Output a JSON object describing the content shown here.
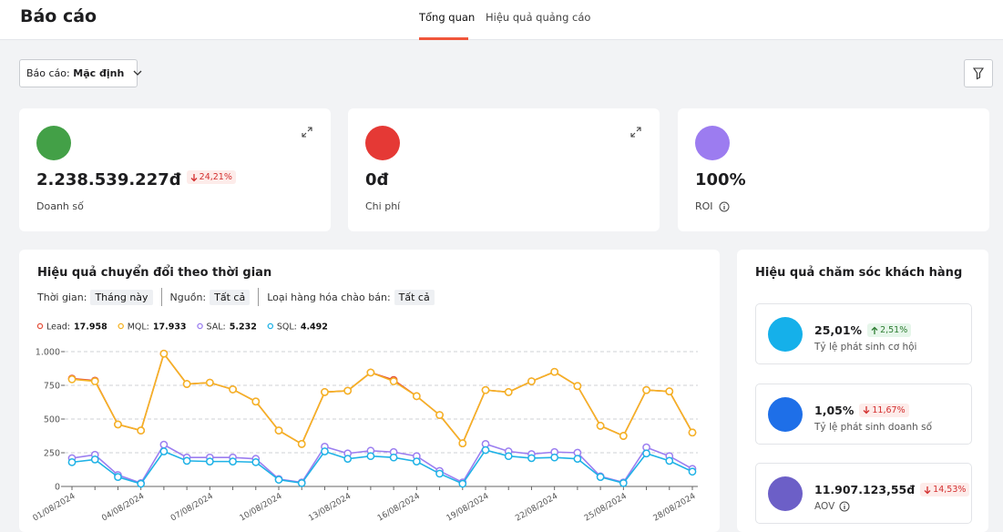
{
  "header": {
    "title": "Báo cáo",
    "tabs": [
      "Tổng quan",
      "Hiệu quả quảng cáo"
    ],
    "active_tab": 0
  },
  "toolbar": {
    "report_label": "Báo cáo:",
    "report_value": "Mặc định"
  },
  "kpis": [
    {
      "value": "2.238.539.227đ",
      "change": "24,21%",
      "trend": "down",
      "label": "Doanh số",
      "color": "#43a047",
      "expand": true
    },
    {
      "value": "0đ",
      "label": "Chi phí",
      "color": "#e53935",
      "expand": true
    },
    {
      "value": "100%",
      "label": "ROI",
      "color": "#9c7cf0",
      "info": true
    }
  ],
  "conversion": {
    "title": "Hiệu quả chuyển đổi theo thời gian",
    "filters": [
      {
        "label": "Thời gian:",
        "value": "Tháng này"
      },
      {
        "label": "Nguồn:",
        "value": "Tất cả"
      },
      {
        "label": "Loại hàng hóa chào bán:",
        "value": "Tất cả"
      }
    ],
    "chart_data": {
      "type": "line",
      "categories": [
        "01/08/2024",
        null,
        null,
        "04/08/2024",
        null,
        null,
        "07/08/2024",
        null,
        null,
        "10/08/2024",
        null,
        null,
        "13/08/2024",
        null,
        null,
        "16/08/2024",
        null,
        null,
        "19/08/2024",
        null,
        null,
        "22/08/2024",
        null,
        null,
        "25/08/2024",
        null,
        null,
        "28/08/2024"
      ],
      "ylim": [
        0,
        1000
      ],
      "yticks": [
        0,
        250,
        500,
        750,
        {
          "value": 1000,
          "label": "1.000"
        }
      ],
      "grid": true,
      "series": [
        {
          "name": "Lead",
          "total": "17.958",
          "color": "#e5533d",
          "values": [
            800,
            785,
            460,
            415,
            985,
            760,
            770,
            720,
            630,
            415,
            315,
            700,
            710,
            845,
            790,
            670,
            530,
            320,
            715,
            700,
            780,
            850,
            745,
            450,
            375,
            715,
            705,
            400
          ]
        },
        {
          "name": "MQL",
          "total": "17.933",
          "color": "#f5b324",
          "values": [
            795,
            780,
            460,
            415,
            985,
            760,
            770,
            720,
            630,
            415,
            315,
            700,
            710,
            845,
            780,
            670,
            530,
            320,
            715,
            700,
            780,
            850,
            745,
            450,
            375,
            715,
            705,
            400
          ]
        },
        {
          "name": "SAL",
          "total": "5.232",
          "color": "#9b7ef0",
          "values": [
            210,
            235,
            85,
            25,
            310,
            215,
            215,
            215,
            205,
            55,
            30,
            295,
            245,
            265,
            255,
            225,
            115,
            30,
            315,
            260,
            240,
            255,
            250,
            75,
            30,
            290,
            225,
            130
          ]
        },
        {
          "name": "SQL",
          "total": "4.492",
          "color": "#1fb2e6",
          "values": [
            180,
            200,
            70,
            20,
            260,
            190,
            185,
            185,
            180,
            50,
            25,
            260,
            205,
            225,
            215,
            185,
            95,
            20,
            270,
            225,
            210,
            215,
            205,
            70,
            25,
            245,
            190,
            110
          ]
        }
      ]
    }
  },
  "care": {
    "title": "Hiệu quả chăm sóc khách hàng",
    "items": [
      {
        "value": "25,01%",
        "change": "2,51%",
        "trend": "up",
        "label": "Tỷ lệ phát sinh cơ hội",
        "color": "#15b0ea"
      },
      {
        "value": "1,05%",
        "change": "11,67%",
        "trend": "down",
        "label": "Tỷ lệ phát sinh doanh số",
        "color": "#1e6fe8"
      },
      {
        "value": "11.907.123,55đ",
        "change": "14,53%",
        "trend": "down",
        "label": "AOV",
        "color": "#6c5fc7",
        "info": true
      }
    ]
  }
}
